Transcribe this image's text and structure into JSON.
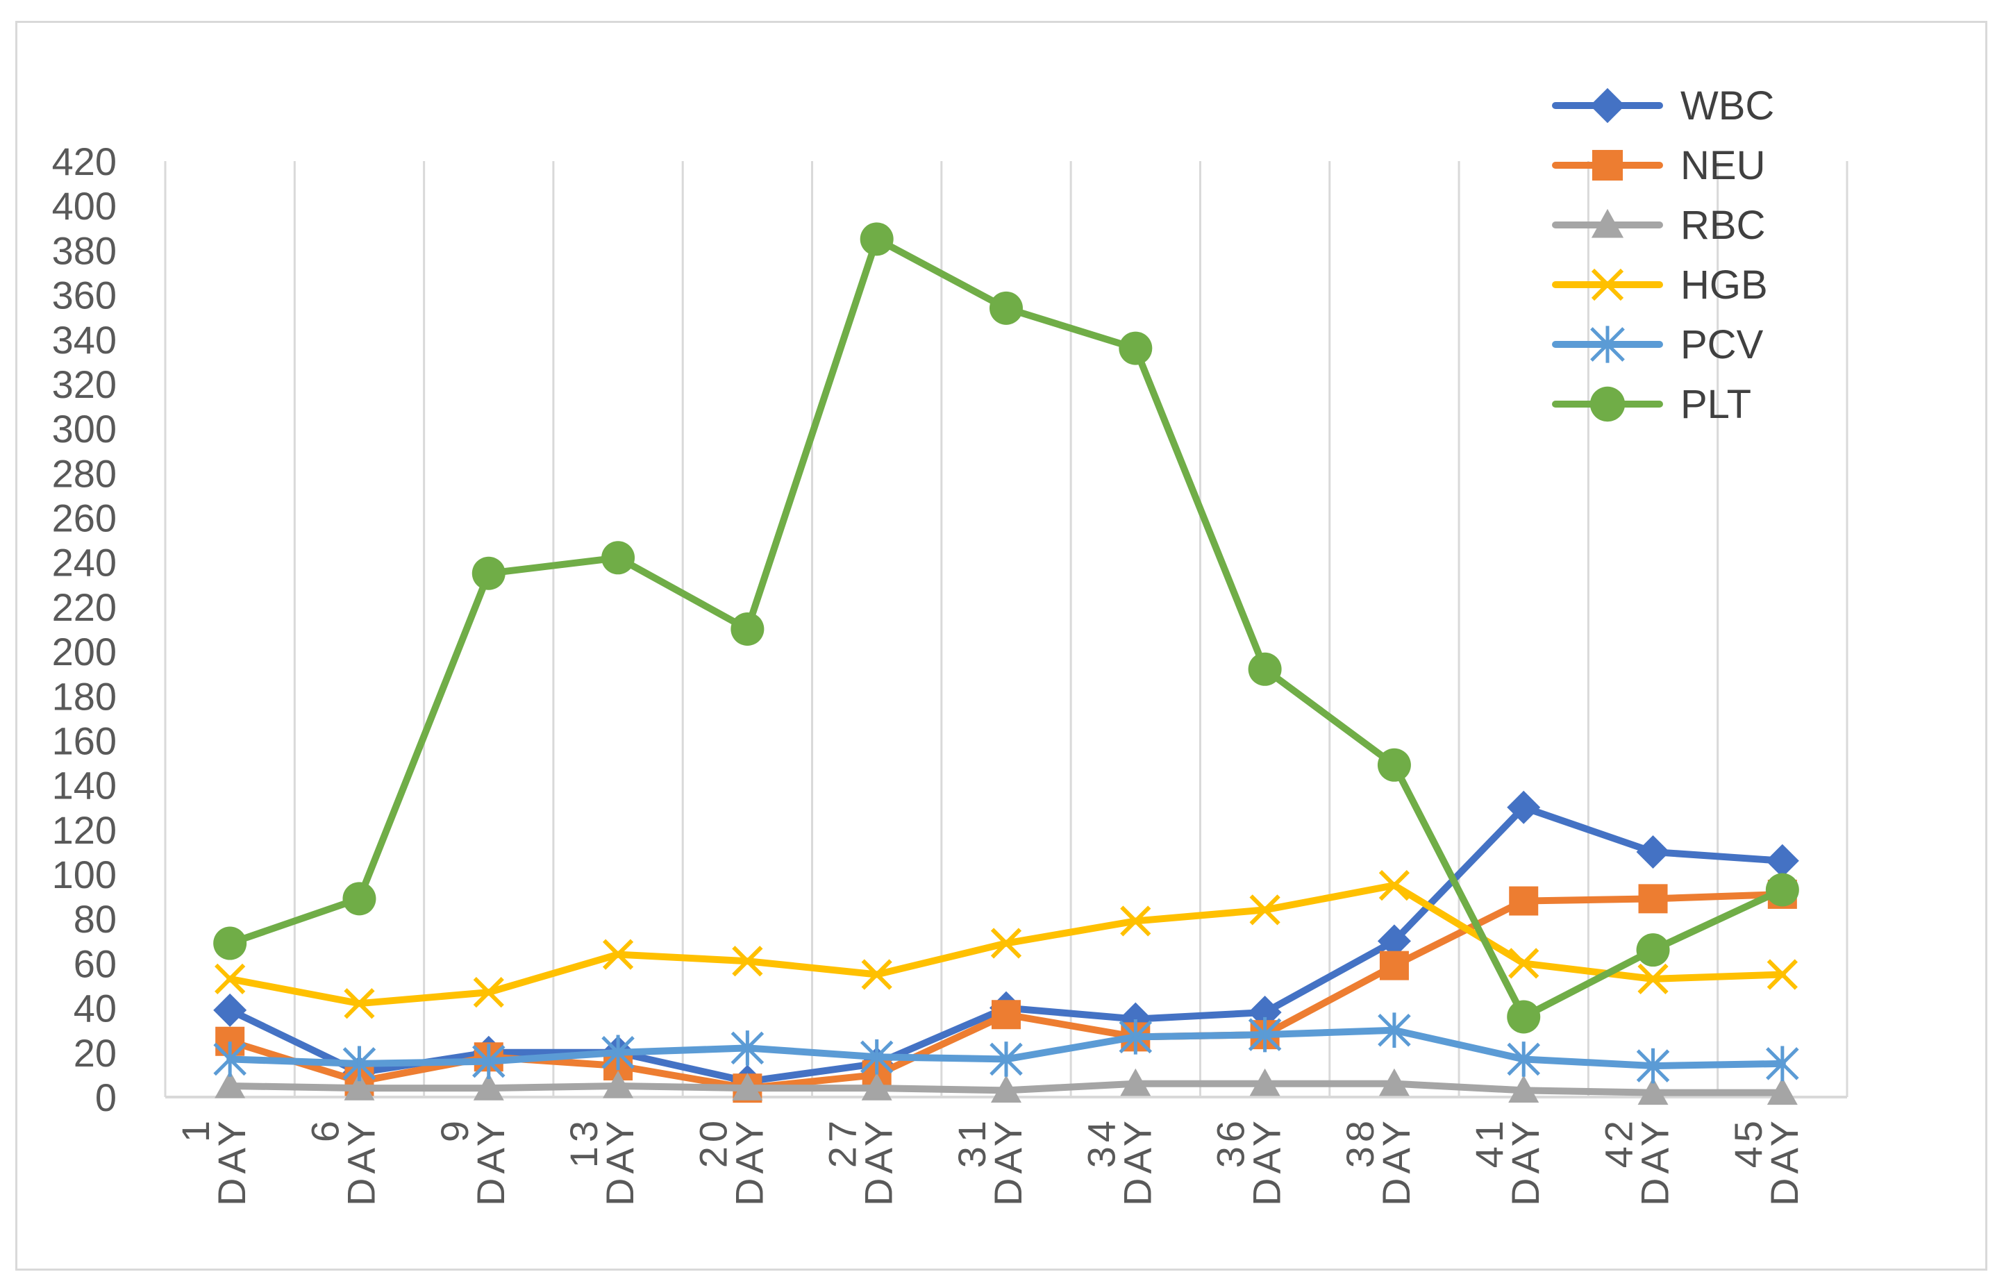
{
  "chart_data": {
    "type": "line",
    "title": "",
    "xlabel": "",
    "ylabel": "",
    "categories": [
      [
        "DAY",
        "1"
      ],
      [
        "DAY",
        "6"
      ],
      [
        "DAY",
        "9"
      ],
      [
        "DAY",
        "13"
      ],
      [
        "DAY",
        "20"
      ],
      [
        "DAY",
        "27"
      ],
      [
        "DAY",
        "31"
      ],
      [
        "DAY",
        "34"
      ],
      [
        "DAY",
        "36"
      ],
      [
        "DAY",
        "38"
      ],
      [
        "DAY",
        "41"
      ],
      [
        "DAY",
        "42"
      ],
      [
        "DAY",
        "45"
      ]
    ],
    "ylim": [
      0,
      420
    ],
    "yticks": [
      "0",
      "20",
      "40",
      "60",
      "80",
      "100",
      "120",
      "140",
      "160",
      "180",
      "200",
      "220",
      "240",
      "260",
      "280",
      "300",
      "320",
      "340",
      "360",
      "380",
      "400",
      "420"
    ],
    "grid": "vertical",
    "legend_position": "top-right",
    "series": [
      {
        "name": "WBC",
        "color": "#4472c4",
        "marker": "diamond",
        "values": [
          39,
          11,
          20,
          20,
          7,
          15,
          40,
          35,
          38,
          70,
          130,
          110,
          106
        ]
      },
      {
        "name": "NEU",
        "color": "#ed7d31",
        "marker": "square",
        "values": [
          25,
          7,
          18,
          14,
          4,
          10,
          37,
          27,
          28,
          59,
          88,
          89,
          91
        ]
      },
      {
        "name": "RBC",
        "color": "#a5a5a5",
        "marker": "triangle",
        "values": [
          5,
          4,
          4,
          5,
          4,
          4,
          3,
          6,
          6,
          6,
          3,
          2,
          2
        ]
      },
      {
        "name": "HGB",
        "color": "#ffc000",
        "marker": "x",
        "values": [
          53,
          42,
          47,
          64,
          61,
          55,
          69,
          79,
          84,
          95,
          60,
          53,
          55
        ]
      },
      {
        "name": "PCV",
        "color": "#5b9bd5",
        "marker": "star",
        "values": [
          17,
          15,
          16,
          20,
          22,
          18,
          17,
          27,
          28,
          30,
          17,
          14,
          15
        ]
      },
      {
        "name": "PLT",
        "color": "#70ad47",
        "marker": "circle",
        "values": [
          69,
          89,
          235,
          242,
          210,
          385,
          354,
          336,
          192,
          149,
          36,
          66,
          93
        ]
      }
    ]
  }
}
